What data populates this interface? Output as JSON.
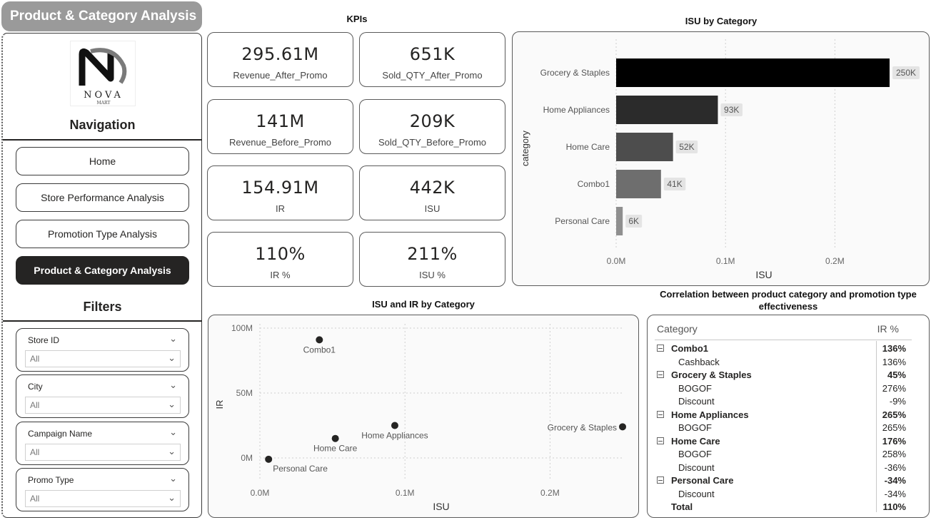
{
  "page": {
    "title": "Product & Category Analysis"
  },
  "sidebar": {
    "logo": {
      "brand": "NOVA",
      "sub": "MART"
    },
    "navigation_title": "Navigation",
    "nav_items": [
      {
        "label": "Home",
        "active": false
      },
      {
        "label": "Store Performance Analysis",
        "active": false
      },
      {
        "label": "Promotion Type Analysis",
        "active": false
      },
      {
        "label": "Product & Category Analysis",
        "active": true
      }
    ],
    "filters_title": "Filters",
    "filters": [
      {
        "label": "Store ID",
        "value": "All"
      },
      {
        "label": "City",
        "value": "All"
      },
      {
        "label": "Campaign Name",
        "value": "All"
      },
      {
        "label": "Promo Type",
        "value": "All"
      }
    ]
  },
  "kpis": {
    "title": "KPIs",
    "cards": [
      {
        "value": "295.61M",
        "label": "Revenue_After_Promo"
      },
      {
        "value": "651K",
        "label": "Sold_QTY_After_Promo"
      },
      {
        "value": "141M",
        "label": "Revenue_Before_Promo"
      },
      {
        "value": "209K",
        "label": "Sold_QTY_Before_Promo"
      },
      {
        "value": "154.91M",
        "label": "IR"
      },
      {
        "value": "442K",
        "label": "ISU"
      },
      {
        "value": "110%",
        "label": "IR %"
      },
      {
        "value": "211%",
        "label": "ISU %"
      }
    ]
  },
  "chart_data": [
    {
      "type": "bar",
      "orientation": "horizontal",
      "title": "ISU by Category",
      "xlabel": "ISU",
      "ylabel": "category",
      "categories": [
        "Grocery & Staples",
        "Home Appliances",
        "Home Care",
        "Combo1",
        "Personal Care"
      ],
      "values": [
        250000,
        93000,
        52000,
        41000,
        6000
      ],
      "data_labels": [
        "250K",
        "93K",
        "52K",
        "41K",
        "6K"
      ],
      "x_ticks": [
        0,
        100000,
        200000
      ],
      "x_tick_labels": [
        "0.0M",
        "0.1M",
        "0.2M"
      ],
      "xlim": [
        0,
        250000
      ],
      "bar_colors": [
        "#000000",
        "#2b2b2b",
        "#4d4d4d",
        "#6e6e6e",
        "#8f8f8f"
      ]
    },
    {
      "type": "scatter",
      "title": "ISU and IR by Category",
      "xlabel": "ISU",
      "ylabel": "IR",
      "points": [
        {
          "label": "Combo1",
          "x": 41000,
          "y": 91000000
        },
        {
          "label": "Grocery & Staples",
          "x": 250000,
          "y": 24000000
        },
        {
          "label": "Home Appliances",
          "x": 93000,
          "y": 25000000
        },
        {
          "label": "Home Care",
          "x": 52000,
          "y": 15000000
        },
        {
          "label": "Personal Care",
          "x": 6000,
          "y": -1000000
        }
      ],
      "x_ticks": [
        0,
        100000,
        200000
      ],
      "x_tick_labels": [
        "0.0M",
        "0.1M",
        "0.2M"
      ],
      "y_ticks": [
        0,
        50000000,
        100000000
      ],
      "y_tick_labels": [
        "0M",
        "50M",
        "100M"
      ],
      "xlim": [
        0,
        250000
      ],
      "ylim": [
        0,
        100000000
      ],
      "grid": true,
      "point_color": "#252423"
    }
  ],
  "matrix": {
    "title": "Correlation between product category and promotion type effectiveness",
    "columns": [
      "Category",
      "IR %"
    ],
    "rows": [
      {
        "label": "Combo1",
        "value": "136%",
        "level": 0
      },
      {
        "label": "Cashback",
        "value": "136%",
        "level": 1
      },
      {
        "label": "Grocery & Staples",
        "value": "45%",
        "level": 0
      },
      {
        "label": "BOGOF",
        "value": "276%",
        "level": 1
      },
      {
        "label": "Discount",
        "value": "-9%",
        "level": 1
      },
      {
        "label": "Home Appliances",
        "value": "265%",
        "level": 0
      },
      {
        "label": "BOGOF",
        "value": "265%",
        "level": 1
      },
      {
        "label": "Home Care",
        "value": "176%",
        "level": 0
      },
      {
        "label": "BOGOF",
        "value": "258%",
        "level": 1
      },
      {
        "label": "Discount",
        "value": "-36%",
        "level": 1
      },
      {
        "label": "Personal Care",
        "value": "-34%",
        "level": 0
      },
      {
        "label": "Discount",
        "value": "-34%",
        "level": 1
      },
      {
        "label": "Total",
        "value": "110%",
        "level": 2
      }
    ]
  }
}
